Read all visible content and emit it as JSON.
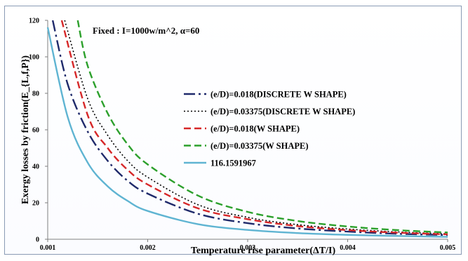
{
  "chart_data": {
    "type": "line",
    "annotation": "Fixed : I=1000w/m^2, α=60",
    "xlabel": "Temperature rise parameter(ΔT/I)",
    "ylabel": "Exergy losses by friction(E_{L,f,P})",
    "xlim": [
      0.001,
      0.005
    ],
    "ylim": [
      0,
      120
    ],
    "xticks": [
      "0.001",
      "0.002",
      "0.003",
      "0.004",
      "0.005"
    ],
    "yticks": [
      "0",
      "20",
      "40",
      "60",
      "80",
      "100",
      "120"
    ],
    "grid": false,
    "legend_position": "right-center",
    "series": [
      {
        "name": "(e/D)=0.018(DISCRETE W SHAPE)",
        "color": "#1f2a6b",
        "dash": "long-dash-dot",
        "x": [
          0.00105,
          0.0012,
          0.0014,
          0.0016,
          0.0018,
          0.002,
          0.0025,
          0.003,
          0.0035,
          0.004,
          0.0045,
          0.005
        ],
        "y": [
          120,
          85,
          59,
          43,
          32,
          25,
          14,
          8.8,
          5.9,
          4.2,
          3.0,
          2.3
        ]
      },
      {
        "name": "(e/D)=0.03375(DISCRETE W SHAPE)",
        "color": "#000000",
        "dash": "dotted",
        "x": [
          0.00117,
          0.0014,
          0.0016,
          0.0018,
          0.002,
          0.0025,
          0.003,
          0.0035,
          0.004,
          0.0045,
          0.005
        ],
        "y": [
          120,
          77,
          57,
          43,
          34,
          19,
          12,
          8.0,
          5.6,
          4.0,
          3.0
        ]
      },
      {
        "name": "(e/D)=0.018(W SHAPE)",
        "color": "#d62728",
        "dash": "dashed",
        "x": [
          0.00114,
          0.0014,
          0.0016,
          0.0018,
          0.002,
          0.0025,
          0.003,
          0.0035,
          0.004,
          0.0045,
          0.005
        ],
        "y": [
          120,
          68,
          50,
          38,
          30,
          17,
          11,
          7.2,
          5.0,
          3.6,
          2.7
        ]
      },
      {
        "name": "(e/D)=0.03375(W SHAPE)",
        "color": "#2ca02c",
        "dash": "dashed",
        "x": [
          0.0013,
          0.0014,
          0.0016,
          0.0018,
          0.002,
          0.0025,
          0.003,
          0.0035,
          0.004,
          0.0045,
          0.005
        ],
        "y": [
          120,
          95,
          69,
          52,
          41,
          24,
          15,
          10,
          7.0,
          5.0,
          3.7
        ]
      },
      {
        "name": "116.1591967",
        "color": "#5fb4d2",
        "dash": "solid",
        "x": [
          0.001,
          0.0012,
          0.0014,
          0.0016,
          0.0018,
          0.002,
          0.0025,
          0.003,
          0.0035,
          0.004,
          0.0045,
          0.005
        ],
        "y": [
          116.16,
          67,
          42,
          29,
          21,
          15.5,
          8.3,
          5.1,
          3.4,
          2.4,
          1.8,
          1.3
        ]
      }
    ]
  }
}
